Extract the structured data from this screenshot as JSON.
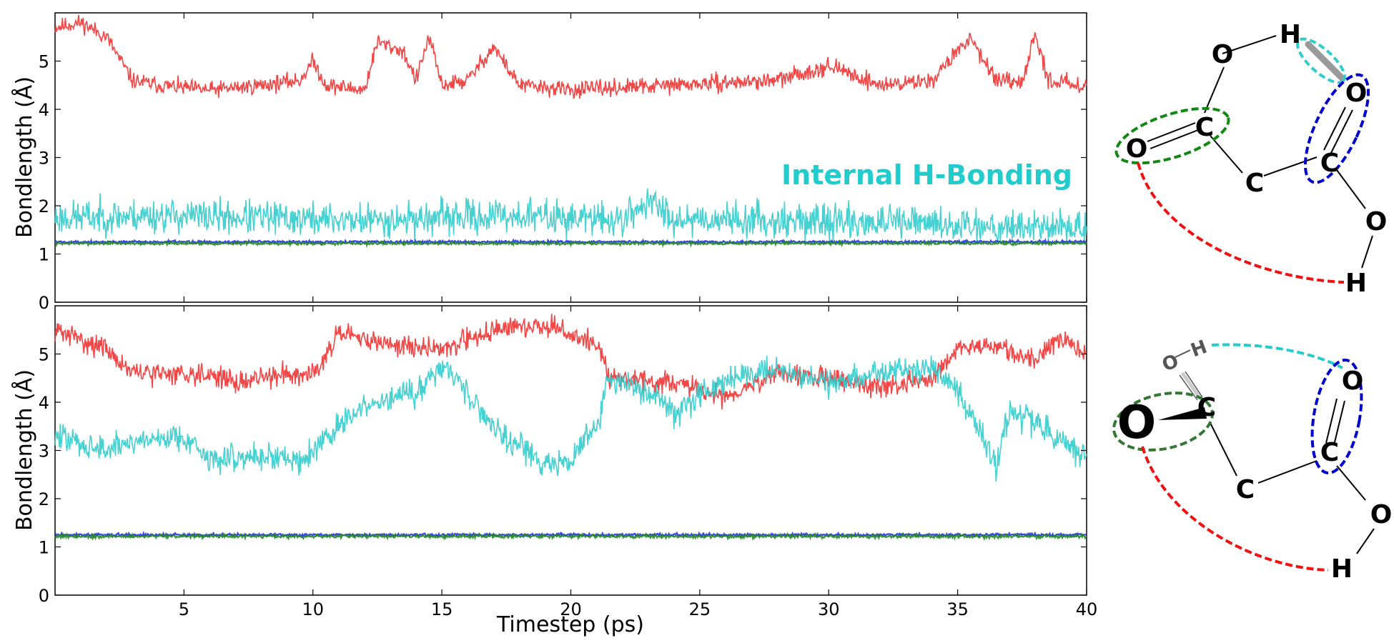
{
  "chart_data": {
    "type": "line",
    "xlabel": "Timestep (ps)",
    "xlim": [
      0,
      40
    ],
    "x_ticks": [
      "5",
      "10",
      "15",
      "20",
      "25",
      "30",
      "35",
      "40"
    ],
    "panels": [
      {
        "ylabel": "Bondlength (Å)",
        "ylim": [
          0,
          6
        ],
        "y_ticks": [
          "0",
          "1",
          "2",
          "3",
          "4",
          "5"
        ],
        "annotation": "Internal H-Bonding",
        "series": [
          {
            "color": "#ee3333",
            "points": [
              [
                0,
                5.7
              ],
              [
                1,
                5.8
              ],
              [
                2,
                5.5
              ],
              [
                3,
                4.6
              ],
              [
                4,
                4.5
              ],
              [
                6,
                4.4
              ],
              [
                8,
                4.5
              ],
              [
                9.5,
                4.6
              ],
              [
                10,
                5.0
              ],
              [
                10.5,
                4.5
              ],
              [
                12,
                4.4
              ],
              [
                12.5,
                5.4
              ],
              [
                13.5,
                5.2
              ],
              [
                14,
                4.6
              ],
              [
                14.5,
                5.5
              ],
              [
                15,
                4.5
              ],
              [
                16,
                4.6
              ],
              [
                17,
                5.3
              ],
              [
                18,
                4.5
              ],
              [
                20,
                4.4
              ],
              [
                24,
                4.5
              ],
              [
                28,
                4.6
              ],
              [
                30,
                4.9
              ],
              [
                32,
                4.5
              ],
              [
                34,
                4.6
              ],
              [
                35.5,
                5.5
              ],
              [
                36.5,
                4.6
              ],
              [
                37.5,
                4.5
              ],
              [
                38,
                5.6
              ],
              [
                38.5,
                4.6
              ],
              [
                40,
                4.5
              ]
            ],
            "noise": 0.12,
            "seed": 11
          },
          {
            "color": "#33cccc",
            "points": [
              [
                0,
                1.75
              ],
              [
                4,
                1.8
              ],
              [
                8,
                1.75
              ],
              [
                12,
                1.7
              ],
              [
                15,
                1.75
              ],
              [
                18,
                1.8
              ],
              [
                22,
                1.7
              ],
              [
                23,
                2.1
              ],
              [
                24,
                1.75
              ],
              [
                28,
                1.7
              ],
              [
                32,
                1.65
              ],
              [
                36,
                1.6
              ],
              [
                40,
                1.55
              ]
            ],
            "noise": 0.25,
            "seed": 23
          },
          {
            "color": "#2233dd",
            "points": [
              [
                0,
                1.25
              ],
              [
                40,
                1.25
              ]
            ],
            "noise": 0.02,
            "seed": 5
          },
          {
            "color": "#228822",
            "points": [
              [
                0,
                1.22
              ],
              [
                40,
                1.22
              ]
            ],
            "noise": 0.02,
            "seed": 7
          }
        ]
      },
      {
        "ylabel": "Bondlength (Å)",
        "ylim": [
          0,
          6
        ],
        "y_ticks": [
          "0",
          "1",
          "2",
          "3",
          "4",
          "5"
        ],
        "series": [
          {
            "color": "#ee3333",
            "points": [
              [
                0,
                5.5
              ],
              [
                2,
                5.1
              ],
              [
                3,
                4.6
              ],
              [
                6,
                4.6
              ],
              [
                7,
                4.4
              ],
              [
                9,
                4.6
              ],
              [
                10,
                4.6
              ],
              [
                11,
                5.4
              ],
              [
                13,
                5.2
              ],
              [
                15,
                5.1
              ],
              [
                17,
                5.5
              ],
              [
                19,
                5.6
              ],
              [
                21,
                5.2
              ],
              [
                21.5,
                4.5
              ],
              [
                24,
                4.4
              ],
              [
                26,
                4.1
              ],
              [
                28,
                4.6
              ],
              [
                30,
                4.5
              ],
              [
                32,
                4.3
              ],
              [
                34,
                4.5
              ],
              [
                35,
                5.1
              ],
              [
                36,
                5.2
              ],
              [
                38,
                4.9
              ],
              [
                39,
                5.3
              ],
              [
                40,
                5.0
              ]
            ],
            "noise": 0.16,
            "seed": 31
          },
          {
            "color": "#33cccc",
            "points": [
              [
                0,
                3.3
              ],
              [
                2,
                3.0
              ],
              [
                3,
                3.2
              ],
              [
                5,
                3.3
              ],
              [
                6,
                2.8
              ],
              [
                8,
                2.9
              ],
              [
                9.5,
                2.8
              ],
              [
                10,
                3.0
              ],
              [
                11,
                3.5
              ],
              [
                12,
                3.9
              ],
              [
                14,
                4.2
              ],
              [
                15,
                4.8
              ],
              [
                16,
                4.2
              ],
              [
                17,
                3.5
              ],
              [
                19,
                2.7
              ],
              [
                20,
                2.8
              ],
              [
                21,
                3.5
              ],
              [
                21.5,
                4.5
              ],
              [
                23,
                4.2
              ],
              [
                24,
                3.8
              ],
              [
                26,
                4.5
              ],
              [
                28,
                4.7
              ],
              [
                30,
                4.4
              ],
              [
                32,
                4.6
              ],
              [
                34,
                4.8
              ],
              [
                35,
                4.2
              ],
              [
                36,
                3.3
              ],
              [
                36.5,
                2.6
              ],
              [
                37,
                3.8
              ],
              [
                38,
                3.6
              ],
              [
                39,
                3.2
              ],
              [
                40,
                2.8
              ]
            ],
            "noise": 0.2,
            "seed": 47
          },
          {
            "color": "#2233dd",
            "points": [
              [
                0,
                1.25
              ],
              [
                40,
                1.25
              ]
            ],
            "noise": 0.02,
            "seed": 3
          },
          {
            "color": "#228822",
            "points": [
              [
                0,
                1.22
              ],
              [
                40,
                1.22
              ]
            ],
            "noise": 0.025,
            "seed": 9
          }
        ]
      }
    ]
  },
  "molecules": {
    "top": {
      "atoms": [
        "O",
        "H",
        "O",
        "C",
        "O",
        "C",
        "C",
        "O",
        "H"
      ]
    },
    "bottom": {
      "atoms": [
        "O",
        "H",
        "O",
        "C",
        "O",
        "C",
        "C",
        "O",
        "H"
      ]
    }
  }
}
